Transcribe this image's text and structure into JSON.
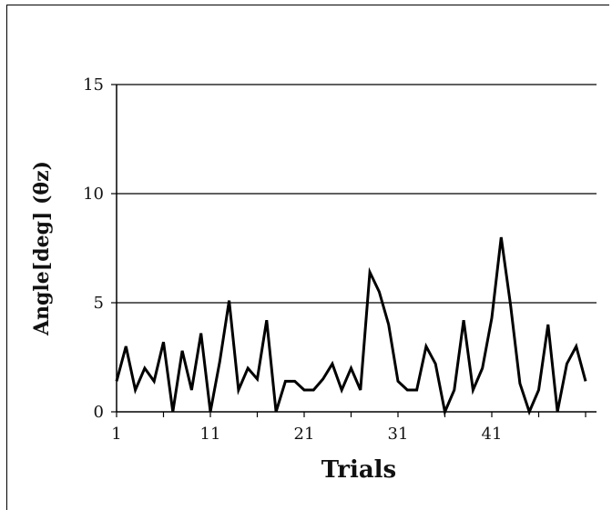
{
  "chart_data": {
    "type": "line",
    "xlabel": "Trials",
    "ylabel": "Angle[deg] (θz)",
    "ylim": [
      0,
      15
    ],
    "xlim": [
      1,
      51
    ],
    "x_ticks": [
      1,
      11,
      21,
      31,
      41
    ],
    "y_ticks": [
      0,
      5,
      10,
      15
    ],
    "grid": "horizontal",
    "x": [
      1,
      2,
      3,
      4,
      5,
      6,
      7,
      8,
      9,
      10,
      11,
      12,
      13,
      14,
      15,
      16,
      17,
      18,
      19,
      20,
      21,
      22,
      23,
      24,
      25,
      26,
      27,
      28,
      29,
      30,
      31,
      32,
      33,
      34,
      35,
      36,
      37,
      38,
      39,
      40,
      41,
      42,
      43,
      44,
      45,
      46,
      47,
      48,
      49,
      50,
      51
    ],
    "series": [
      {
        "values": [
          1.4,
          3.0,
          1.0,
          2.0,
          1.4,
          3.2,
          0.0,
          2.8,
          1.0,
          3.6,
          0.0,
          2.3,
          5.1,
          1.0,
          2.0,
          1.5,
          4.2,
          0.0,
          1.4,
          1.4,
          1.0,
          1.0,
          1.5,
          2.2,
          1.0,
          2.0,
          1.0,
          6.4,
          5.5,
          4.0,
          1.4,
          1.0,
          1.0,
          3.0,
          2.2,
          0.0,
          1.0,
          4.2,
          1.0,
          2.0,
          4.3,
          8.0,
          4.9,
          1.3,
          0.0,
          1.0,
          4.0,
          0.0,
          2.2,
          3.0,
          1.4
        ],
        "color": "#000000"
      }
    ]
  }
}
